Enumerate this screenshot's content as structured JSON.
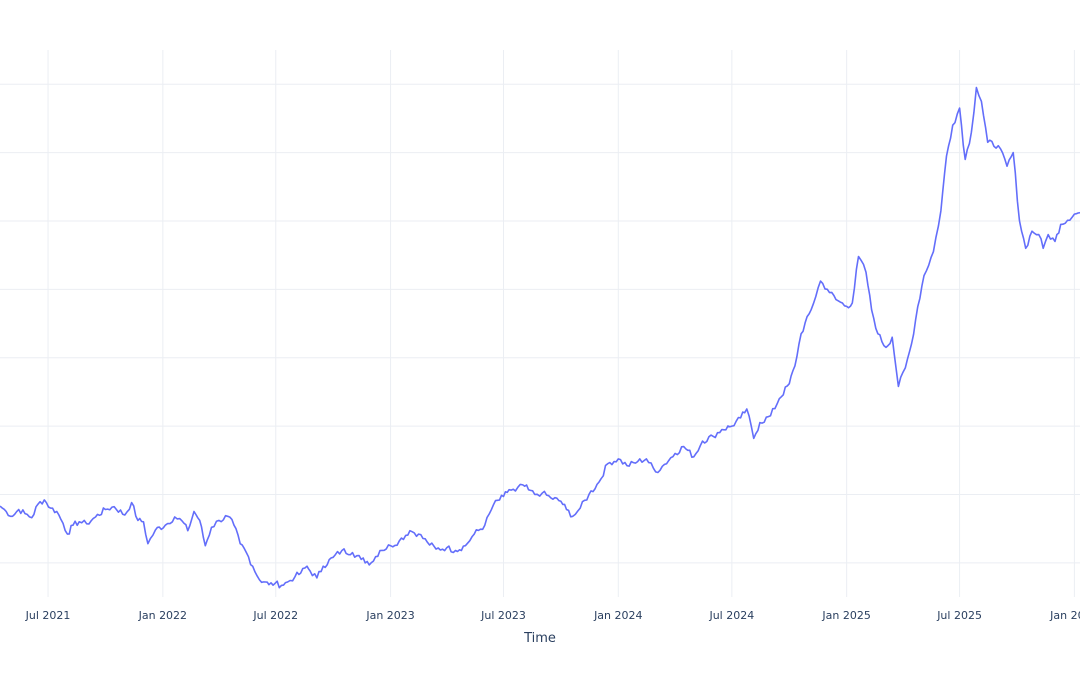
{
  "chart_data": {
    "type": "line",
    "title": "",
    "xlabel": "Time",
    "ylabel": "",
    "grid": true,
    "x_ticks": [
      {
        "date": "2021-07-01",
        "label": "Jul 2021"
      },
      {
        "date": "2022-01-01",
        "label": "Jan 2022"
      },
      {
        "date": "2022-07-01",
        "label": "Jul 2022"
      },
      {
        "date": "2023-01-01",
        "label": "Jan 2023"
      },
      {
        "date": "2023-07-01",
        "label": "Jul 2023"
      },
      {
        "date": "2024-01-01",
        "label": "Jan 2024"
      },
      {
        "date": "2024-07-01",
        "label": "Jul 2024"
      },
      {
        "date": "2025-01-01",
        "label": "Jan 2025"
      },
      {
        "date": "2025-07-01",
        "label": "Jul 2025"
      },
      {
        "date": "2026-01-01",
        "label": "Jan 2026"
      }
    ],
    "xlim": [
      "2021-04-15",
      "2026-01-10"
    ],
    "ylim": [
      -0.5,
      7.5
    ],
    "y_gridlines": [
      0,
      1,
      2,
      3,
      4,
      5,
      6,
      7
    ],
    "series": [
      {
        "name": "",
        "color": "#636efa",
        "points": [
          [
            "2021-04-15",
            0.83
          ],
          [
            "2021-04-25",
            0.75
          ],
          [
            "2021-05-05",
            0.68
          ],
          [
            "2021-05-15",
            0.78
          ],
          [
            "2021-05-25",
            0.72
          ],
          [
            "2021-06-05",
            0.66
          ],
          [
            "2021-06-15",
            0.86
          ],
          [
            "2021-06-25",
            0.92
          ],
          [
            "2021-07-05",
            0.8
          ],
          [
            "2021-07-15",
            0.75
          ],
          [
            "2021-07-25",
            0.58
          ],
          [
            "2021-08-01",
            0.42
          ],
          [
            "2021-08-10",
            0.55
          ],
          [
            "2021-08-20",
            0.6
          ],
          [
            "2021-09-01",
            0.57
          ],
          [
            "2021-09-15",
            0.67
          ],
          [
            "2021-10-01",
            0.78
          ],
          [
            "2021-10-15",
            0.82
          ],
          [
            "2021-11-01",
            0.7
          ],
          [
            "2021-11-12",
            0.88
          ],
          [
            "2021-11-22",
            0.62
          ],
          [
            "2021-12-01",
            0.6
          ],
          [
            "2021-12-08",
            0.28
          ],
          [
            "2021-12-20",
            0.48
          ],
          [
            "2022-01-05",
            0.55
          ],
          [
            "2022-01-20",
            0.67
          ],
          [
            "2022-02-01",
            0.61
          ],
          [
            "2022-02-10",
            0.47
          ],
          [
            "2022-02-20",
            0.75
          ],
          [
            "2022-03-01",
            0.62
          ],
          [
            "2022-03-10",
            0.25
          ],
          [
            "2022-03-20",
            0.52
          ],
          [
            "2022-04-01",
            0.62
          ],
          [
            "2022-04-15",
            0.68
          ],
          [
            "2022-04-25",
            0.55
          ],
          [
            "2022-05-05",
            0.28
          ],
          [
            "2022-05-15",
            0.15
          ],
          [
            "2022-05-25",
            -0.05
          ],
          [
            "2022-06-05",
            -0.25
          ],
          [
            "2022-06-15",
            -0.28
          ],
          [
            "2022-06-20",
            -0.32
          ],
          [
            "2022-06-30",
            -0.3
          ],
          [
            "2022-07-10",
            -0.33
          ],
          [
            "2022-07-20",
            -0.28
          ],
          [
            "2022-08-01",
            -0.2
          ],
          [
            "2022-08-10",
            -0.15
          ],
          [
            "2022-08-20",
            -0.05
          ],
          [
            "2022-08-25",
            -0.12
          ],
          [
            "2022-09-05",
            -0.22
          ],
          [
            "2022-09-15",
            -0.05
          ],
          [
            "2022-10-01",
            0.08
          ],
          [
            "2022-10-15",
            0.18
          ],
          [
            "2022-11-01",
            0.15
          ],
          [
            "2022-11-15",
            0.05
          ],
          [
            "2022-12-01",
            0.0
          ],
          [
            "2022-12-15",
            0.18
          ],
          [
            "2023-01-01",
            0.25
          ],
          [
            "2023-01-15",
            0.32
          ],
          [
            "2023-02-01",
            0.47
          ],
          [
            "2023-02-15",
            0.42
          ],
          [
            "2023-03-01",
            0.3
          ],
          [
            "2023-03-15",
            0.2
          ],
          [
            "2023-04-01",
            0.22
          ],
          [
            "2023-04-15",
            0.18
          ],
          [
            "2023-05-01",
            0.25
          ],
          [
            "2023-05-15",
            0.42
          ],
          [
            "2023-06-01",
            0.55
          ],
          [
            "2023-06-15",
            0.85
          ],
          [
            "2023-07-01",
            0.97
          ],
          [
            "2023-07-10",
            1.07
          ],
          [
            "2023-07-20",
            1.05
          ],
          [
            "2023-08-01",
            1.14
          ],
          [
            "2023-08-10",
            1.07
          ],
          [
            "2023-08-20",
            1.0
          ],
          [
            "2023-09-01",
            1.02
          ],
          [
            "2023-09-15",
            0.95
          ],
          [
            "2023-10-01",
            0.9
          ],
          [
            "2023-10-10",
            0.78
          ],
          [
            "2023-10-20",
            0.68
          ],
          [
            "2023-11-01",
            0.8
          ],
          [
            "2023-11-15",
            1.0
          ],
          [
            "2023-12-01",
            1.18
          ],
          [
            "2023-12-15",
            1.45
          ],
          [
            "2024-01-01",
            1.52
          ],
          [
            "2024-01-15",
            1.42
          ],
          [
            "2024-02-01",
            1.48
          ],
          [
            "2024-02-15",
            1.52
          ],
          [
            "2024-03-01",
            1.33
          ],
          [
            "2024-03-15",
            1.44
          ],
          [
            "2024-04-01",
            1.6
          ],
          [
            "2024-04-15",
            1.7
          ],
          [
            "2024-05-01",
            1.55
          ],
          [
            "2024-05-15",
            1.78
          ],
          [
            "2024-06-01",
            1.85
          ],
          [
            "2024-06-15",
            1.95
          ],
          [
            "2024-07-01",
            2.0
          ],
          [
            "2024-07-15",
            2.12
          ],
          [
            "2024-07-25",
            2.25
          ],
          [
            "2024-08-05",
            1.82
          ],
          [
            "2024-08-15",
            2.05
          ],
          [
            "2024-09-01",
            2.15
          ],
          [
            "2024-09-15",
            2.4
          ],
          [
            "2024-10-01",
            2.62
          ],
          [
            "2024-10-10",
            2.88
          ],
          [
            "2024-10-20",
            3.35
          ],
          [
            "2024-11-05",
            3.7
          ],
          [
            "2024-11-20",
            4.12
          ],
          [
            "2024-12-01",
            4.0
          ],
          [
            "2024-12-15",
            3.85
          ],
          [
            "2025-01-01",
            3.75
          ],
          [
            "2025-01-10",
            3.8
          ],
          [
            "2025-01-20",
            4.48
          ],
          [
            "2025-02-01",
            4.25
          ],
          [
            "2025-02-10",
            3.7
          ],
          [
            "2025-02-20",
            3.35
          ],
          [
            "2025-03-05",
            3.15
          ],
          [
            "2025-03-15",
            3.3
          ],
          [
            "2025-03-25",
            2.58
          ],
          [
            "2025-04-05",
            2.85
          ],
          [
            "2025-04-15",
            3.2
          ],
          [
            "2025-04-25",
            3.75
          ],
          [
            "2025-05-05",
            4.2
          ],
          [
            "2025-05-20",
            4.55
          ],
          [
            "2025-06-01",
            5.15
          ],
          [
            "2025-06-10",
            5.95
          ],
          [
            "2025-06-20",
            6.4
          ],
          [
            "2025-07-01",
            6.65
          ],
          [
            "2025-07-10",
            5.9
          ],
          [
            "2025-07-20",
            6.3
          ],
          [
            "2025-07-28",
            6.95
          ],
          [
            "2025-08-05",
            6.75
          ],
          [
            "2025-08-15",
            6.15
          ],
          [
            "2025-09-01",
            6.1
          ],
          [
            "2025-09-15",
            5.8
          ],
          [
            "2025-09-25",
            6.0
          ],
          [
            "2025-10-05",
            5.0
          ],
          [
            "2025-10-15",
            4.6
          ],
          [
            "2025-10-25",
            4.85
          ],
          [
            "2025-11-05",
            4.8
          ],
          [
            "2025-11-12",
            4.6
          ],
          [
            "2025-11-20",
            4.8
          ],
          [
            "2025-12-01",
            4.7
          ],
          [
            "2025-12-10",
            4.95
          ],
          [
            "2026-01-01",
            5.1
          ],
          [
            "2026-01-10",
            5.12
          ]
        ]
      }
    ]
  }
}
